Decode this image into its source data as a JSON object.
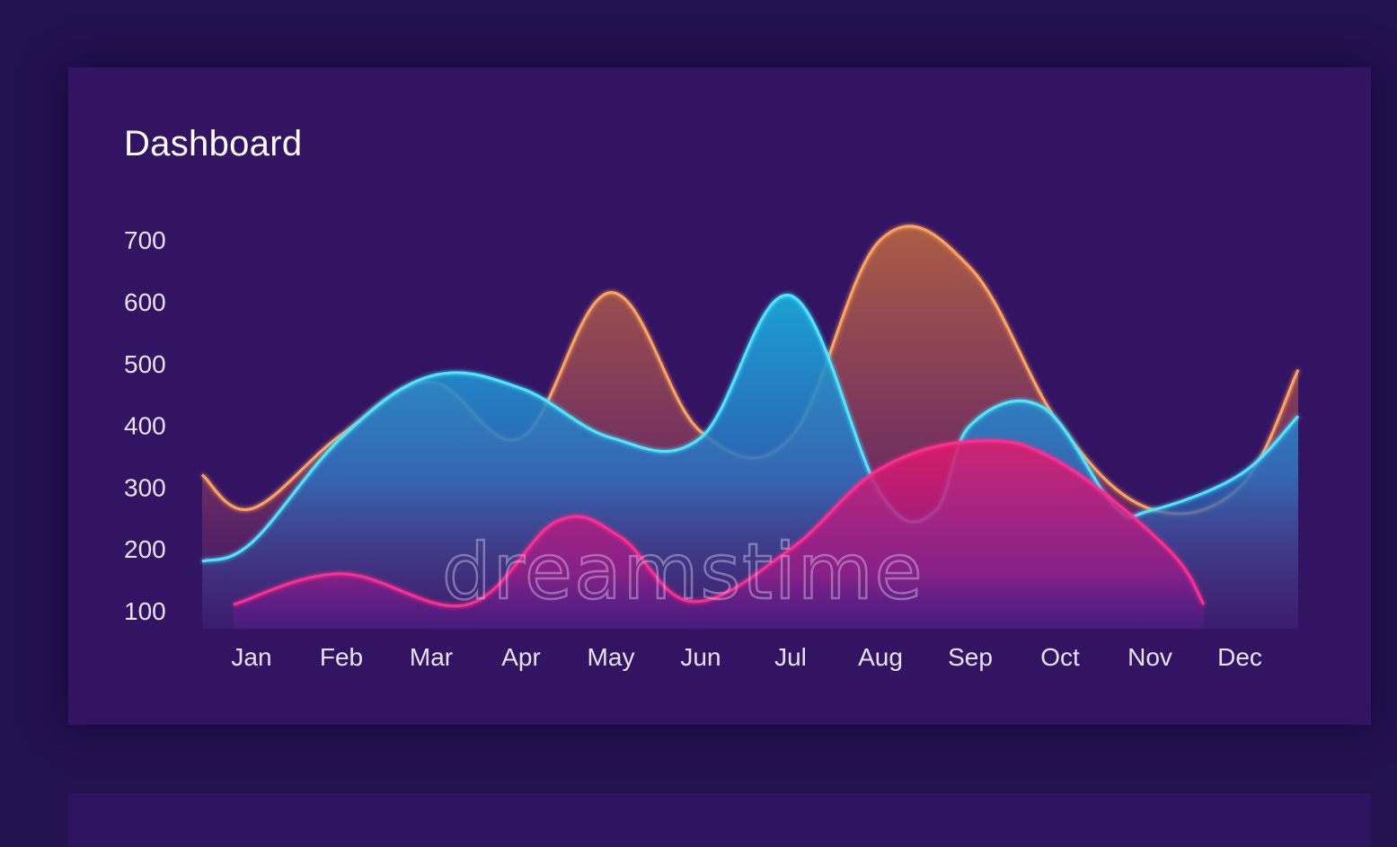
{
  "dashboard": {
    "title": "Dashboard"
  },
  "watermark": "dreamstime",
  "colors": {
    "background": "#24114f",
    "card": "#331463",
    "orange": "#ffa35c",
    "cyan": "#4de8ff",
    "pink": "#ff2f8e"
  },
  "chart_data": {
    "type": "area",
    "title": "",
    "xlabel": "",
    "ylabel": "",
    "categories": [
      "Jan",
      "Feb",
      "Mar",
      "Apr",
      "May",
      "Jun",
      "Jul",
      "Aug",
      "Sep",
      "Oct",
      "Nov",
      "Dec"
    ],
    "ylim": [
      100,
      700
    ],
    "yticks": [
      700,
      600,
      500,
      400,
      300,
      200,
      100
    ],
    "grid": false,
    "legend": "none",
    "series": [
      {
        "color": "orange",
        "points": [
          [
            -0.55,
            320
          ],
          [
            0,
            265
          ],
          [
            1,
            385
          ],
          [
            2,
            470
          ],
          [
            3,
            380
          ],
          [
            4,
            615
          ],
          [
            5,
            390
          ],
          [
            6,
            380
          ],
          [
            7,
            700
          ],
          [
            8,
            655
          ],
          [
            9,
            400
          ],
          [
            10,
            265
          ],
          [
            11,
            300
          ],
          [
            11.65,
            490
          ]
        ]
      },
      {
        "color": "cyan",
        "points": [
          [
            -0.55,
            180
          ],
          [
            0,
            210
          ],
          [
            1,
            380
          ],
          [
            2,
            480
          ],
          [
            3,
            460
          ],
          [
            4,
            380
          ],
          [
            5,
            380
          ],
          [
            6,
            610
          ],
          [
            7,
            290
          ],
          [
            7.6,
            260
          ],
          [
            8,
            400
          ],
          [
            8.8,
            430
          ],
          [
            9.6,
            270
          ],
          [
            10,
            262
          ],
          [
            11,
            320
          ],
          [
            11.65,
            415
          ]
        ]
      },
      {
        "color": "pink",
        "points": [
          [
            -0.2,
            110
          ],
          [
            1,
            160
          ],
          [
            2.4,
            110
          ],
          [
            3.4,
            245
          ],
          [
            4.1,
            220
          ],
          [
            4.9,
            115
          ],
          [
            6,
            200
          ],
          [
            7,
            330
          ],
          [
            8.1,
            375
          ],
          [
            9,
            340
          ],
          [
            10.2,
            200
          ],
          [
            10.6,
            110
          ]
        ]
      }
    ]
  }
}
